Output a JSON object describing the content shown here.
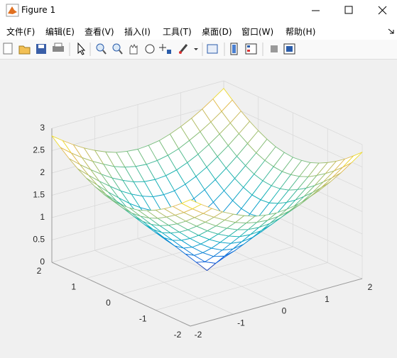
{
  "window": {
    "title": "Figure 1"
  },
  "menu": [
    "文件(F)",
    "编辑(E)",
    "查看(V)",
    "插入(I)",
    "工具(T)",
    "桌面(D)",
    "窗口(W)",
    "帮助(H)"
  ],
  "chart_data": {
    "type": "mesh",
    "colormap": "parula",
    "grid": true,
    "x": [
      -2,
      -1.75,
      -1.5,
      -1.25,
      -1,
      -0.75,
      -0.5,
      -0.25,
      0,
      0.25,
      0.5,
      0.75,
      1,
      1.25,
      1.5,
      1.75,
      2
    ],
    "y": [
      -2,
      -1.75,
      -1.5,
      -1.25,
      -1,
      -0.75,
      -0.5,
      -0.25,
      0,
      0.25,
      0.5,
      0.75,
      1,
      1.25,
      1.5,
      1.75,
      2
    ],
    "z": [
      [
        2.83,
        2.66,
        2.5,
        2.36,
        2.24,
        2.14,
        2.06,
        2.02,
        2,
        2.02,
        2.06,
        2.14,
        2.24,
        2.36,
        2.5,
        2.66,
        2.83
      ],
      [
        2.66,
        2.47,
        2.3,
        2.15,
        2.02,
        1.9,
        1.82,
        1.77,
        1.75,
        1.77,
        1.82,
        1.9,
        2.02,
        2.15,
        2.3,
        2.47,
        2.66
      ],
      [
        2.5,
        2.3,
        2.12,
        1.95,
        1.8,
        1.68,
        1.58,
        1.52,
        1.5,
        1.52,
        1.58,
        1.68,
        1.8,
        1.95,
        2.12,
        2.3,
        2.5
      ],
      [
        2.36,
        2.15,
        1.95,
        1.77,
        1.6,
        1.46,
        1.35,
        1.27,
        1.25,
        1.27,
        1.35,
        1.46,
        1.6,
        1.77,
        1.95,
        2.15,
        2.36
      ],
      [
        2.24,
        2.02,
        1.8,
        1.6,
        1.41,
        1.25,
        1.12,
        1.03,
        1,
        1.03,
        1.12,
        1.25,
        1.41,
        1.6,
        1.8,
        2.02,
        2.24
      ],
      [
        2.14,
        1.9,
        1.68,
        1.46,
        1.25,
        1.06,
        0.9,
        0.79,
        0.75,
        0.79,
        0.9,
        1.06,
        1.25,
        1.46,
        1.68,
        1.9,
        2.14
      ],
      [
        2.06,
        1.82,
        1.58,
        1.35,
        1.12,
        0.9,
        0.71,
        0.56,
        0.5,
        0.56,
        0.71,
        0.9,
        1.12,
        1.35,
        1.58,
        1.82,
        2.06
      ],
      [
        2.02,
        1.77,
        1.52,
        1.27,
        1.03,
        0.79,
        0.56,
        0.35,
        0.25,
        0.35,
        0.56,
        0.79,
        1.03,
        1.27,
        1.52,
        1.77,
        2.02
      ],
      [
        2,
        1.75,
        1.5,
        1.25,
        1,
        0.75,
        0.5,
        0.25,
        0,
        0.25,
        0.5,
        0.75,
        1,
        1.25,
        1.5,
        1.75,
        2
      ],
      [
        2.02,
        1.77,
        1.52,
        1.27,
        1.03,
        0.79,
        0.56,
        0.35,
        0.25,
        0.35,
        0.56,
        0.79,
        1.03,
        1.27,
        1.52,
        1.77,
        2.02
      ],
      [
        2.06,
        1.82,
        1.58,
        1.35,
        1.12,
        0.9,
        0.71,
        0.56,
        0.5,
        0.56,
        0.71,
        0.9,
        1.12,
        1.35,
        1.58,
        1.82,
        2.06
      ],
      [
        2.14,
        1.9,
        1.68,
        1.46,
        1.25,
        1.06,
        0.9,
        0.79,
        0.75,
        0.79,
        0.9,
        1.06,
        1.25,
        1.46,
        1.68,
        1.9,
        2.14
      ],
      [
        2.24,
        2.02,
        1.8,
        1.6,
        1.41,
        1.25,
        1.12,
        1.03,
        1,
        1.03,
        1.12,
        1.25,
        1.41,
        1.6,
        1.8,
        2.02,
        2.24
      ],
      [
        2.36,
        2.15,
        1.95,
        1.77,
        1.6,
        1.46,
        1.35,
        1.27,
        1.25,
        1.27,
        1.35,
        1.46,
        1.6,
        1.77,
        1.95,
        2.15,
        2.36
      ],
      [
        2.5,
        2.3,
        2.12,
        1.95,
        1.8,
        1.68,
        1.58,
        1.52,
        1.5,
        1.52,
        1.58,
        1.68,
        1.8,
        1.95,
        2.12,
        2.3,
        2.5
      ],
      [
        2.66,
        2.47,
        2.3,
        2.15,
        2.02,
        1.9,
        1.82,
        1.77,
        1.75,
        1.77,
        1.82,
        1.9,
        2.02,
        2.15,
        2.3,
        2.47,
        2.66
      ],
      [
        2.83,
        2.66,
        2.5,
        2.36,
        2.24,
        2.14,
        2.06,
        2.02,
        2,
        2.02,
        2.06,
        2.14,
        2.24,
        2.36,
        2.5,
        2.66,
        2.83
      ]
    ],
    "xlim": [
      -2,
      2
    ],
    "ylim": [
      -2,
      2
    ],
    "zlim": [
      0,
      3
    ],
    "xticks": [
      -2,
      -1,
      0,
      1,
      2
    ],
    "yticks": [
      -2,
      -1,
      0,
      1,
      2
    ],
    "zticks": [
      0,
      0.5,
      1,
      1.5,
      2,
      2.5,
      3
    ]
  }
}
